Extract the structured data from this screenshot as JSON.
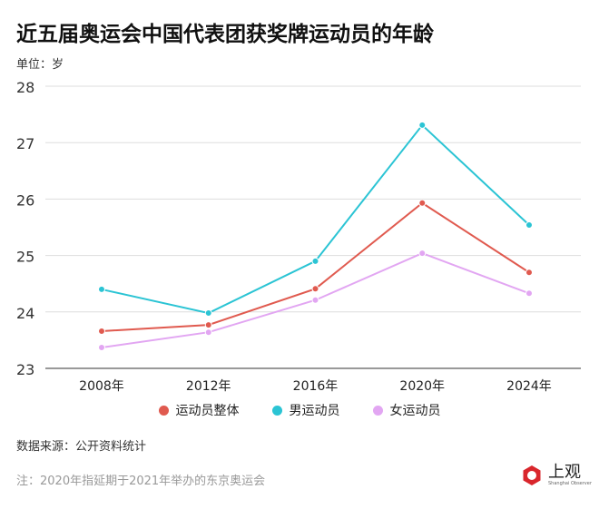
{
  "title": "近五届奥运会中国代表团获奖牌运动员的年龄",
  "unit": "单位：岁",
  "source": "数据来源：公开资料统计",
  "note": "注：2020年指延期于2021年举办的东京奥运会",
  "logo": {
    "text": "上观",
    "sub": "Shanghai Observer"
  },
  "chart_data": {
    "type": "line",
    "title": "近五届奥运会中国代表团获奖牌运动员的年龄",
    "ylabel": "单位：岁",
    "categories": [
      "2008年",
      "2012年",
      "2016年",
      "2020年",
      "2024年"
    ],
    "ylim": [
      23,
      28
    ],
    "yticks": [
      23,
      24,
      25,
      26,
      27,
      28
    ],
    "grid": true,
    "legend_position": "bottom",
    "series": [
      {
        "name": "运动员整体",
        "color": "#e05a4f",
        "values": [
          23.66,
          23.77,
          24.41,
          25.93,
          24.7
        ]
      },
      {
        "name": "男运动员",
        "color": "#2bc4d4",
        "values": [
          24.4,
          23.98,
          24.9,
          27.31,
          25.54
        ]
      },
      {
        "name": "女运动员",
        "color": "#e2a6f2",
        "values": [
          23.37,
          23.64,
          24.21,
          25.04,
          24.33
        ]
      }
    ]
  }
}
